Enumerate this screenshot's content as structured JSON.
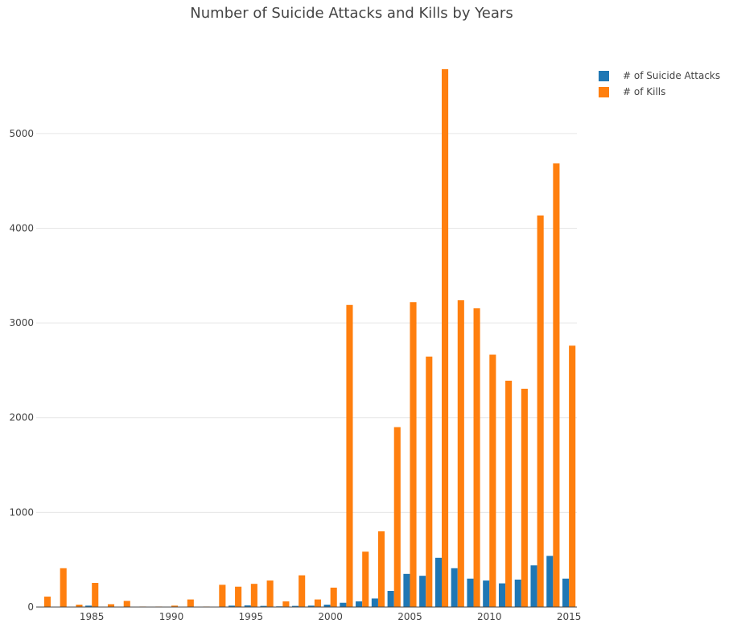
{
  "chart_data": {
    "type": "bar",
    "title": "Number of Suicide Attacks and Kills by Years",
    "xlabel": "",
    "ylabel": "",
    "x": [
      1982,
      1983,
      1984,
      1985,
      1986,
      1987,
      1988,
      1989,
      1990,
      1991,
      1992,
      1993,
      1994,
      1995,
      1996,
      1997,
      1998,
      1999,
      2000,
      2001,
      2002,
      2003,
      2004,
      2005,
      2006,
      2007,
      2008,
      2009,
      2010,
      2011,
      2012,
      2013,
      2014,
      2015
    ],
    "x_ticks": [
      1985,
      1990,
      1995,
      2000,
      2005,
      2010,
      2015
    ],
    "y_ticks": [
      0,
      1000,
      2000,
      3000,
      4000,
      5000
    ],
    "xlim": [
      1981.5,
      2015.5
    ],
    "ylim": [
      0,
      5900
    ],
    "grid": true,
    "legend_position": "top-right",
    "series": [
      {
        "name": "# of Suicide Attacks",
        "color": "#1f77b4",
        "values": [
          1,
          3,
          1,
          15,
          1,
          2,
          2,
          1,
          3,
          3,
          2,
          4,
          15,
          18,
          12,
          7,
          12,
          15,
          25,
          45,
          60,
          90,
          170,
          350,
          330,
          520,
          410,
          300,
          280,
          250,
          290,
          440,
          540,
          300
        ]
      },
      {
        "name": "# of Kills",
        "color": "#ff7f0e",
        "values": [
          110,
          410,
          25,
          255,
          30,
          65,
          5,
          5,
          15,
          80,
          5,
          235,
          215,
          245,
          280,
          60,
          335,
          80,
          205,
          3190,
          585,
          800,
          1900,
          3220,
          2645,
          5680,
          3240,
          3155,
          2665,
          2390,
          2305,
          4135,
          4685,
          2760
        ]
      }
    ]
  }
}
